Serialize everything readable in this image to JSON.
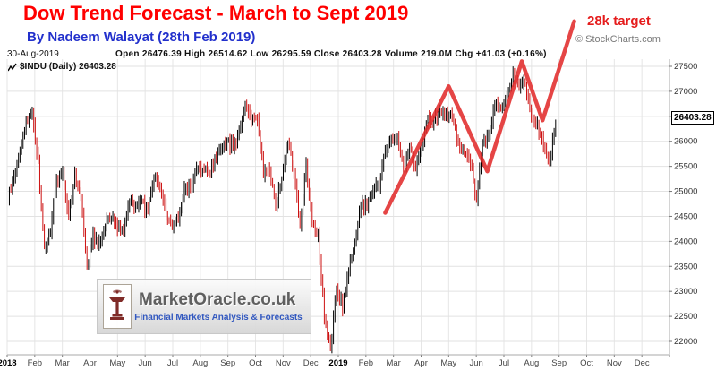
{
  "title": "Dow Trend Forecast - March to Sept 2019",
  "byline": "By Nadeem Walayat (28th Feb 2019)",
  "copyright": "© StockCharts.com",
  "header": {
    "date": "30-Aug-2019",
    "ohlc": "Open 26476.39 High 26514.62 Low 26295.59 Close 26403.28 Volume 219.0M Chg +41.03 (+0.16%)"
  },
  "symbol_label": "$INDU (Daily) 26403.28",
  "price_tag": "26403.28",
  "watermark": {
    "name": "MarketOracle.co.uk",
    "tagline": "Financial Markets Analysis & Forecasts"
  },
  "colors": {
    "title_red": "#ff0000",
    "byline_blue": "#2230cc",
    "forecast_red": "#e12b2b",
    "candle_up": "#000000",
    "candle_down": "#cc1111",
    "grid": "#e6e6e6",
    "axis_text": "#333333"
  },
  "chart_data": {
    "type": "candlestick",
    "title": "Dow Trend Forecast - March to Sept 2019",
    "symbol": "$INDU",
    "timeframe": "Daily",
    "last": 26403.28,
    "date": "30-Aug-2019",
    "open": 26476.39,
    "high": 26514.62,
    "low": 26295.59,
    "close": 26403.28,
    "volume": "219.0M",
    "change": "+41.03 (+0.16%)",
    "ylim": [
      22000,
      27500
    ],
    "grid": true,
    "y_ticks": [
      27500,
      27000,
      26500,
      26000,
      25500,
      25000,
      24500,
      24000,
      23500,
      23000,
      22500,
      22000
    ],
    "x_months": [
      "2018",
      "Feb",
      "Mar",
      "Apr",
      "May",
      "Jun",
      "Jul",
      "Aug",
      "Sep",
      "Oct",
      "Nov",
      "Dec",
      "2019",
      "Feb",
      "Mar",
      "Apr",
      "May",
      "Jun",
      "Jul",
      "Aug",
      "Sep",
      "Oct",
      "Nov",
      "Dec"
    ],
    "closes_span_months": [
      0.08,
      19.93
    ],
    "weekly_closes": [
      24824,
      25296,
      25803,
      26392,
      26617,
      25520,
      23860,
      24191,
      25219,
      25310,
      24538,
      25336,
      24947,
      23533,
      24103,
      23933,
      24360,
      24463,
      24311,
      24263,
      24831,
      24715,
      24753,
      24635,
      25317,
      25090,
      24581,
      24271,
      24456,
      25020,
      25058,
      25451,
      25463,
      25313,
      25669,
      25790,
      25965,
      25917,
      26155,
      26744,
      26458,
      26447,
      25340,
      25444,
      24688,
      25271,
      25989,
      25413,
      24286,
      25538,
      24389,
      24101,
      22445,
      21792,
      23062,
      22686,
      23433,
      23996,
      24706,
      24737,
      25064,
      25106,
      25883,
      26032,
      26026,
      25450,
      25849,
      25502,
      25929,
      26425,
      26412,
      26560,
      26543,
      26505,
      25942,
      25764,
      25586,
      24815,
      25984,
      26090,
      26719,
      26600,
      26922,
      27332,
      27154,
      27192,
      26485,
      26287,
      25886,
      25629,
      26403
    ],
    "forecast": {
      "label": "28k target",
      "points": [
        [
          13.7,
          24570
        ],
        [
          16.0,
          27100
        ],
        [
          17.4,
          25400
        ],
        [
          18.65,
          27600
        ],
        [
          19.4,
          26420
        ],
        [
          20.55,
          28400
        ]
      ]
    }
  }
}
